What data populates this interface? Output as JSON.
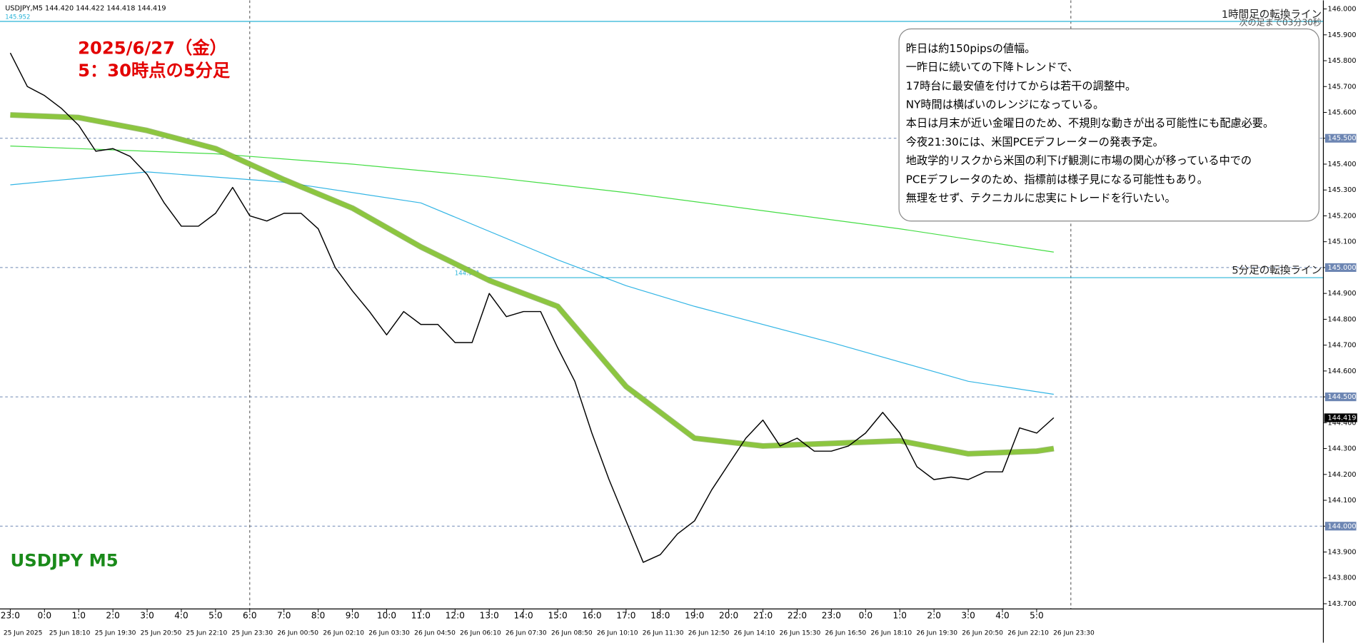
{
  "chart_data": {
    "type": "line",
    "header": "USDJPY,M5  144.420 144.422 144.418 144.419",
    "title_lines": [
      "2025/6/27（金）",
      "5：30時点の5分足"
    ],
    "symbol_label": "USDJPY M5",
    "note": [
      "昨日は約150pipsの値幅。",
      "一昨日に続いての下降トレンドで、",
      "17時台に最安値を付けてからは若干の調整中。",
      "NY時間は横ばいのレンジになっている。",
      "本日は月末が近い金曜日のため、不規則な動きが出る可能性にも配慮必要。",
      "今夜21:30には、米国PCEデフレーターの発表予定。",
      "地政学的リスクから米国の利下げ観測に市場の関心が移っている中での",
      "PCEデフレータのため、指標前は様子見になる可能性もあり。",
      "無理をせず、テクニカルに忠実にトレードを行いたい。"
    ],
    "top_right_label": "次の足まで03分30秒",
    "xlim": [
      -0.3,
      38.38
    ],
    "ylim": [
      143.68,
      146.02
    ],
    "current_price": 144.419,
    "hgrid": [
      145.5,
      145.0,
      144.5,
      144.0
    ],
    "vgrid": [
      7,
      31
    ],
    "hlines": [
      {
        "value": 145.952,
        "label": "145.952",
        "note": "1時間足の転換ライン"
      },
      {
        "value": 144.961,
        "label": "144.961",
        "note": "5分足の転換ライン"
      }
    ],
    "xticks": [
      {
        "value": 0,
        "label": "23:0"
      },
      {
        "value": 1,
        "label": "0:0"
      },
      {
        "value": 2,
        "label": "1:0"
      },
      {
        "value": 3,
        "label": "2:0"
      },
      {
        "value": 4,
        "label": "3:0"
      },
      {
        "value": 5,
        "label": "4:0"
      },
      {
        "value": 6,
        "label": "5:0"
      },
      {
        "value": 7,
        "label": "6:0"
      },
      {
        "value": 8,
        "label": "7:0"
      },
      {
        "value": 9,
        "label": "8:0"
      },
      {
        "value": 10,
        "label": "9:0"
      },
      {
        "value": 11,
        "label": "10:0"
      },
      {
        "value": 12,
        "label": "11:0"
      },
      {
        "value": 13,
        "label": "12:0"
      },
      {
        "value": 14,
        "label": "13:0"
      },
      {
        "value": 15,
        "label": "14:0"
      },
      {
        "value": 16,
        "label": "15:0"
      },
      {
        "value": 17,
        "label": "16:0"
      },
      {
        "value": 18,
        "label": "17:0"
      },
      {
        "value": 19,
        "label": "18:0"
      },
      {
        "value": 20,
        "label": "19:0"
      },
      {
        "value": 21,
        "label": "20:0"
      },
      {
        "value": 22,
        "label": "21:0"
      },
      {
        "value": 23,
        "label": "22:0"
      },
      {
        "value": 24,
        "label": "23:0"
      },
      {
        "value": 25,
        "label": "0:0"
      },
      {
        "value": 26,
        "label": "1:0"
      },
      {
        "value": 27,
        "label": "2:0"
      },
      {
        "value": 28,
        "label": "3:0"
      },
      {
        "value": 29,
        "label": "4:0"
      },
      {
        "value": 30,
        "label": "5:0"
      }
    ],
    "date_labels": [
      "25 Jun 2025",
      "25 Jun 18:10",
      "25 Jun 19:30",
      "25 Jun 20:50",
      "25 Jun 22:10",
      "25 Jun 23:30",
      "26 Jun 00:50",
      "26 Jun 02:10",
      "26 Jun 03:30",
      "26 Jun 04:50",
      "26 Jun 06:10",
      "26 Jun 07:30",
      "26 Jun 08:50",
      "26 Jun 10:10",
      "26 Jun 11:30",
      "26 Jun 12:50",
      "26 Jun 14:10",
      "26 Jun 15:30",
      "26 Jun 16:50",
      "26 Jun 18:10",
      "26 Jun 19:30",
      "26 Jun 20:50",
      "26 Jun 22:10",
      "26 Jun 23:30"
    ],
    "yticks": [
      {
        "value": 146.0,
        "label": "146.000"
      },
      {
        "value": 145.9,
        "label": "145.900"
      },
      {
        "value": 145.8,
        "label": "145.800"
      },
      {
        "value": 145.7,
        "label": "145.700"
      },
      {
        "value": 145.6,
        "label": "145.600"
      },
      {
        "value": 145.5,
        "label": "145.500"
      },
      {
        "value": 145.4,
        "label": "145.400"
      },
      {
        "value": 145.3,
        "label": "145.300"
      },
      {
        "value": 145.2,
        "label": "145.200"
      },
      {
        "value": 145.1,
        "label": "145.100"
      },
      {
        "value": 145.0,
        "label": "145.000"
      },
      {
        "value": 144.9,
        "label": "144.900"
      },
      {
        "value": 144.8,
        "label": "144.800"
      },
      {
        "value": 144.7,
        "label": "144.700"
      },
      {
        "value": 144.6,
        "label": "144.600"
      },
      {
        "value": 144.5,
        "label": "144.500"
      },
      {
        "value": 144.4,
        "label": "144.400"
      },
      {
        "value": 144.3,
        "label": "144.300"
      },
      {
        "value": 144.2,
        "label": "144.200"
      },
      {
        "value": 144.1,
        "label": "144.100"
      },
      {
        "value": 144.0,
        "label": "144.000"
      },
      {
        "value": 143.9,
        "label": "143.900"
      },
      {
        "value": 143.8,
        "label": "143.800"
      },
      {
        "value": 143.7,
        "label": "143.700"
      }
    ],
    "series": [
      {
        "color": "#44dd44",
        "width": 1,
        "x": [
          0,
          6,
          10,
          14,
          18,
          22,
          26,
          30.5
        ],
        "values": [
          145.47,
          145.44,
          145.4,
          145.35,
          145.29,
          145.22,
          145.15,
          145.06
        ]
      },
      {
        "color": "#33b5e5",
        "width": 1,
        "x": [
          0,
          4,
          8,
          12,
          16,
          18,
          20,
          24,
          28,
          30.5
        ],
        "values": [
          145.32,
          145.37,
          145.33,
          145.25,
          145.03,
          144.93,
          144.85,
          144.71,
          144.56,
          144.51
        ]
      },
      {
        "color": "#8cc63f",
        "width": 5,
        "x": [
          0,
          2,
          4,
          6,
          8,
          10,
          12,
          14,
          16,
          18,
          20,
          22,
          24,
          26,
          28,
          30,
          30.5
        ],
        "values": [
          145.59,
          145.58,
          145.53,
          145.46,
          145.34,
          145.23,
          145.08,
          144.95,
          144.85,
          144.54,
          144.34,
          144.31,
          144.32,
          144.33,
          144.28,
          144.29,
          144.3
        ]
      },
      {
        "color": "#000000",
        "width": 1.2,
        "x": [
          0,
          0.5,
          1,
          1.5,
          2,
          2.5,
          3,
          3.5,
          4,
          4.5,
          5,
          5.5,
          6,
          6.5,
          7,
          7.5,
          8,
          8.5,
          9,
          9.5,
          10,
          10.5,
          11,
          11.5,
          12,
          12.5,
          13,
          13.5,
          14,
          14.5,
          15,
          15.5,
          16,
          16.5,
          17,
          17.5,
          18,
          18.5,
          19,
          19.5,
          20,
          20.5,
          21,
          21.5,
          22,
          22.5,
          23,
          23.5,
          24,
          24.5,
          25,
          25.5,
          26,
          26.5,
          27,
          27.5,
          28,
          28.5,
          29,
          29.5,
          30,
          30.5
        ],
        "values": [
          145.83,
          145.7,
          145.665,
          145.615,
          145.55,
          145.45,
          145.46,
          145.43,
          145.36,
          145.25,
          145.16,
          145.16,
          145.21,
          145.31,
          145.2,
          145.18,
          145.21,
          145.21,
          145.15,
          145.0,
          144.91,
          144.83,
          144.74,
          144.83,
          144.78,
          144.78,
          144.71,
          144.71,
          144.9,
          144.81,
          144.83,
          144.83,
          144.69,
          144.56,
          144.36,
          144.18,
          144.02,
          143.86,
          143.89,
          143.97,
          144.02,
          144.14,
          144.24,
          144.34,
          144.41,
          144.31,
          144.34,
          144.29,
          144.29,
          144.31,
          144.36,
          144.44,
          144.36,
          144.23,
          144.18,
          144.19,
          144.18,
          144.21,
          144.21,
          144.38,
          144.36,
          144.419
        ]
      }
    ]
  }
}
